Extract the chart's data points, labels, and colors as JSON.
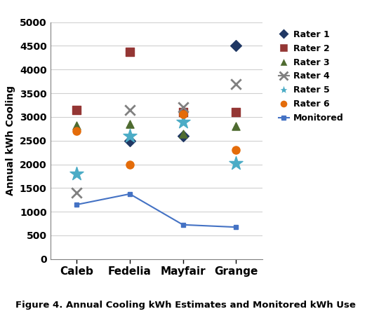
{
  "categories": [
    "Caleb",
    "Fedelia",
    "Mayfair",
    "Grange"
  ],
  "x_positions": [
    1,
    2,
    3,
    4
  ],
  "rater1": [
    null,
    2500,
    2600,
    4500
  ],
  "rater2": [
    3150,
    4375,
    3100,
    3100
  ],
  "rater3": [
    2825,
    2850,
    2650,
    2800
  ],
  "rater4": [
    1400,
    3150,
    3200,
    3700
  ],
  "rater5": [
    1800,
    2600,
    2900,
    2025
  ],
  "rater6": [
    2700,
    2000,
    3050,
    2300
  ],
  "monitored": [
    1150,
    1375,
    725,
    675
  ],
  "rater1_color": "#203864",
  "rater2_color": "#943634",
  "rater3_color": "#4E6B30",
  "rater4_color": "#808080",
  "rater5_color": "#4BACC6",
  "rater6_color": "#E46C0A",
  "monitored_color": "#4472C4",
  "title": "Figure 4. Annual Cooling kWh Estimates and Monitored kWh Use",
  "ylabel": "Annual kWh Cooling",
  "ylim": [
    0,
    5000
  ],
  "yticks": [
    0,
    500,
    1000,
    1500,
    2000,
    2500,
    3000,
    3500,
    4000,
    4500,
    5000
  ],
  "background_color": "#ffffff",
  "grid_color": "#d0d0d0",
  "figsize": [
    5.5,
    4.51
  ],
  "dpi": 100
}
